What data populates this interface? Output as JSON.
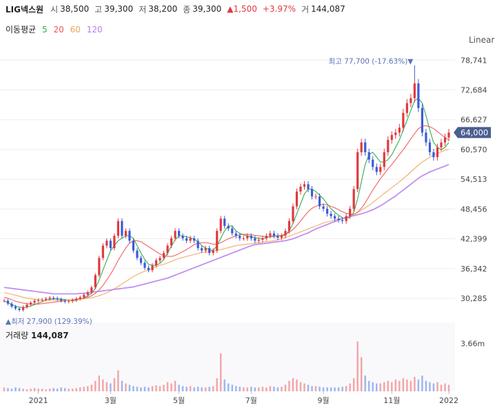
{
  "header": {
    "name": "LIG넥스원",
    "open_label": "시",
    "open": "38,500",
    "high_label": "고",
    "high": "39,300",
    "low_label": "저",
    "low": "38,200",
    "close_label": "종",
    "close": "39,300",
    "change": "▲1,500",
    "change_pct": "+3.97%",
    "volume_label": "거",
    "volume": "144,087"
  },
  "ma_legend": {
    "title": "이동평균",
    "items": [
      {
        "label": "5",
        "color": "#2fa84f"
      },
      {
        "label": "20",
        "color": "#ef5350"
      },
      {
        "label": "60",
        "color": "#f0a35c"
      },
      {
        "label": "120",
        "color": "#b57bee"
      }
    ]
  },
  "scale_mode": "Linear",
  "colors": {
    "up": "#e0393e",
    "down": "#3c5bd9",
    "badge": "#4b5f8f",
    "volume_bar_up": "#f4a3a5",
    "volume_bar_down": "#9db4ee"
  },
  "chart_data": {
    "type": "candlestick",
    "x_ticks": [
      "2021",
      "3월",
      "5월",
      "7월",
      "9월",
      "11월",
      "2022"
    ],
    "y_ticks": [
      "78,741",
      "72,684",
      "66,627",
      "60,570",
      "54,513",
      "48,456",
      "42,399",
      "36,342",
      "30,285"
    ],
    "ylim": [
      26500,
      82000
    ],
    "current_price": "64,000",
    "high_annotation": "최고 77,700 (-17.63%)▼",
    "high_value": 77700,
    "low_annotation": "▲최저 27,900 (129.39%)",
    "low_value": 27900,
    "price_series": [
      {
        "name": "종가",
        "values": [
          29800,
          29200,
          28600,
          28200,
          27900,
          28500,
          29000,
          29400,
          29800,
          29900,
          30000,
          30200,
          30400,
          30300,
          30100,
          29800,
          29600,
          29700,
          29900,
          30200,
          30500,
          31000,
          31500,
          32500,
          35000,
          38500,
          41000,
          42000,
          40500,
          43000,
          46000,
          43000,
          44000,
          42000,
          40000,
          38500,
          37500,
          36500,
          36000,
          37000,
          38000,
          38500,
          39500,
          41000,
          42500,
          44000,
          43000,
          42500,
          42000,
          42500,
          42000,
          40500,
          40000,
          40500,
          39500,
          40000,
          44000,
          46500,
          45000,
          44500,
          43500,
          43000,
          42500,
          42500,
          43000,
          42500,
          42000,
          42200,
          42500,
          43000,
          43500,
          43000,
          42600,
          43000,
          44000,
          46000,
          49000,
          52000,
          53000,
          53500,
          52500,
          51000,
          51000,
          49000,
          48500,
          47500,
          47000,
          46500,
          46200,
          46000,
          47000,
          48500,
          52500,
          60000,
          62000,
          60000,
          58500,
          57000,
          56000,
          57000,
          60000,
          62500,
          63500,
          64000,
          65000,
          68000,
          70000,
          71000,
          74000,
          69000,
          64000,
          62000,
          60000,
          59000,
          61000,
          62000,
          63000,
          64000
        ]
      },
      {
        "name": "MA5",
        "values": [
          29800,
          29400,
          29000,
          28700,
          28500,
          28400,
          28500,
          28700,
          29000,
          29300,
          29600,
          29900,
          30100,
          30200,
          30200,
          30100,
          30000,
          29900,
          29800,
          29900,
          30100,
          30400,
          30800,
          31300,
          32300,
          34000,
          36000,
          38000,
          40000,
          41000,
          42000,
          42500,
          43000,
          43000,
          42500,
          41000,
          39500,
          38200,
          37200,
          37000,
          37000,
          37400,
          38200,
          39500,
          40900,
          42200,
          43000,
          43000,
          42800,
          42600,
          42300,
          41800,
          41000,
          40500,
          40200,
          40000,
          41000,
          42500,
          44000,
          45000,
          45000,
          44000,
          43500,
          43200,
          43000,
          42800,
          42600,
          42500,
          42400,
          42600,
          42900,
          43000,
          43000,
          43000,
          43200,
          44000,
          45500,
          47500,
          49500,
          51500,
          52500,
          52500,
          52000,
          51300,
          50500,
          49500,
          48500,
          47800,
          47200,
          46700,
          46500,
          46800,
          47800,
          50500,
          54000,
          57500,
          59500,
          60000,
          59000,
          58000,
          58000,
          58500,
          59500,
          61000,
          62500,
          64500,
          66500,
          68500,
          70500,
          71000,
          70000,
          67500,
          64500,
          62000,
          61000,
          60500,
          61000,
          62000
        ]
      },
      {
        "name": "MA20",
        "values": [
          30500,
          30300,
          30000,
          29700,
          29500,
          29300,
          29200,
          29100,
          29100,
          29100,
          29200,
          29300,
          29400,
          29500,
          29600,
          29700,
          29800,
          29900,
          30000,
          30100,
          30200,
          30300,
          30500,
          30800,
          31300,
          32000,
          32900,
          34000,
          35200,
          36500,
          38000,
          39300,
          40500,
          41500,
          42000,
          42000,
          41800,
          41300,
          40800,
          40300,
          39800,
          39300,
          39000,
          38800,
          38800,
          39000,
          39400,
          39800,
          40200,
          40700,
          41200,
          41500,
          41600,
          41600,
          41500,
          41300,
          41300,
          41600,
          42000,
          42400,
          42700,
          43000,
          43200,
          43300,
          43300,
          43200,
          43100,
          43000,
          42900,
          42800,
          42800,
          42900,
          43000,
          43100,
          43300,
          43700,
          44300,
          45100,
          46000,
          47000,
          47900,
          48600,
          49000,
          49300,
          49400,
          49300,
          49000,
          48700,
          48300,
          47900,
          47600,
          47400,
          47400,
          47800,
          48600,
          49700,
          51000,
          52300,
          53500,
          54600,
          55600,
          56600,
          57500,
          58500,
          59500,
          60500,
          61600,
          62700,
          63800,
          64800,
          65300,
          65400,
          65200,
          64800,
          64200,
          63600,
          63000,
          62500
        ]
      },
      {
        "name": "MA60",
        "values": [
          31500,
          31300,
          31100,
          30900,
          30700,
          30500,
          30300,
          30200,
          30100,
          30000,
          29900,
          29900,
          29900,
          29900,
          29900,
          29900,
          29900,
          29900,
          30000,
          30000,
          30100,
          30200,
          30300,
          30400,
          30600,
          30800,
          31100,
          31400,
          31800,
          32200,
          32700,
          33200,
          33700,
          34200,
          34700,
          35100,
          35500,
          35800,
          36100,
          36400,
          36700,
          37000,
          37200,
          37500,
          37800,
          38100,
          38400,
          38600,
          38800,
          39000,
          39200,
          39400,
          39600,
          39700,
          39800,
          39900,
          40000,
          40200,
          40400,
          40600,
          40800,
          41000,
          41100,
          41200,
          41300,
          41400,
          41500,
          41600,
          41700,
          41800,
          41900,
          42000,
          42200,
          42400,
          42600,
          42900,
          43200,
          43500,
          43800,
          44100,
          44400,
          44700,
          45000,
          45300,
          45600,
          45800,
          46000,
          46200,
          46400,
          46600,
          46800,
          47000,
          47300,
          47700,
          48200,
          48700,
          49200,
          49800,
          50400,
          51000,
          51600,
          52200,
          52800,
          53400,
          54000,
          54600,
          55300,
          56000,
          56700,
          57400,
          58000,
          58500,
          59000,
          59400,
          59800,
          60100,
          60400,
          60600
        ]
      },
      {
        "name": "MA120",
        "values": [
          32500,
          32400,
          32300,
          32200,
          32100,
          32000,
          31900,
          31800,
          31700,
          31600,
          31500,
          31400,
          31300,
          31200,
          31200,
          31200,
          31200,
          31200,
          31200,
          31200,
          31300,
          31300,
          31400,
          31500,
          31600,
          31700,
          31800,
          31900,
          32000,
          32100,
          32200,
          32300,
          32400,
          32500,
          32600,
          32800,
          33000,
          33200,
          33400,
          33600,
          33800,
          34000,
          34200,
          34400,
          34700,
          35000,
          35300,
          35600,
          35900,
          36200,
          36500,
          36800,
          37100,
          37400,
          37700,
          38000,
          38300,
          38600,
          38900,
          39200,
          39500,
          39800,
          40100,
          40400,
          40700,
          41000,
          41200,
          41300,
          41400,
          41500,
          41600,
          41700,
          41800,
          41900,
          42000,
          42200,
          42400,
          42700,
          43000,
          43300,
          43600,
          44000,
          44400,
          44700,
          45000,
          45300,
          45600,
          45900,
          46200,
          46500,
          46700,
          46900,
          47100,
          47300,
          47500,
          47700,
          48000,
          48300,
          48700,
          49100,
          49600,
          50100,
          50600,
          51100,
          51700,
          52300,
          52900,
          53500,
          54100,
          54700,
          55200,
          55600,
          56000,
          56300,
          56600,
          56900,
          57200,
          57500
        ]
      }
    ],
    "volume_ticks": [
      "3.66m"
    ],
    "volume_title": "거래량",
    "volume_value": "144,087",
    "volume_series": {
      "name": "거래량",
      "values": [
        0.3,
        0.25,
        0.2,
        0.3,
        0.25,
        0.2,
        0.15,
        0.2,
        0.25,
        0.2,
        0.2,
        0.15,
        0.2,
        0.25,
        0.2,
        0.3,
        0.25,
        0.2,
        0.2,
        0.25,
        0.3,
        0.35,
        0.4,
        0.5,
        0.8,
        1.2,
        0.9,
        0.7,
        0.6,
        1.0,
        1.6,
        0.8,
        0.6,
        0.5,
        0.4,
        0.35,
        0.3,
        0.35,
        0.3,
        0.4,
        0.45,
        0.4,
        0.5,
        0.7,
        0.6,
        0.8,
        0.5,
        0.4,
        0.35,
        0.4,
        0.3,
        0.35,
        0.3,
        0.3,
        0.35,
        0.4,
        1.0,
        2.9,
        0.9,
        0.6,
        0.5,
        0.4,
        0.35,
        0.3,
        0.3,
        0.35,
        0.3,
        0.3,
        0.35,
        0.3,
        0.4,
        0.35,
        0.3,
        0.35,
        0.5,
        0.8,
        1.0,
        0.9,
        0.7,
        0.6,
        0.5,
        0.4,
        0.4,
        0.35,
        0.3,
        0.3,
        0.3,
        0.3,
        0.3,
        0.35,
        0.4,
        0.6,
        1.0,
        3.8,
        2.6,
        1.2,
        0.8,
        0.7,
        0.6,
        0.6,
        0.7,
        0.8,
        0.7,
        0.9,
        0.8,
        1.0,
        0.9,
        0.8,
        1.1,
        0.9,
        1.2,
        0.8,
        0.7,
        0.6,
        0.7,
        0.5,
        0.6,
        0.5
      ]
    }
  }
}
